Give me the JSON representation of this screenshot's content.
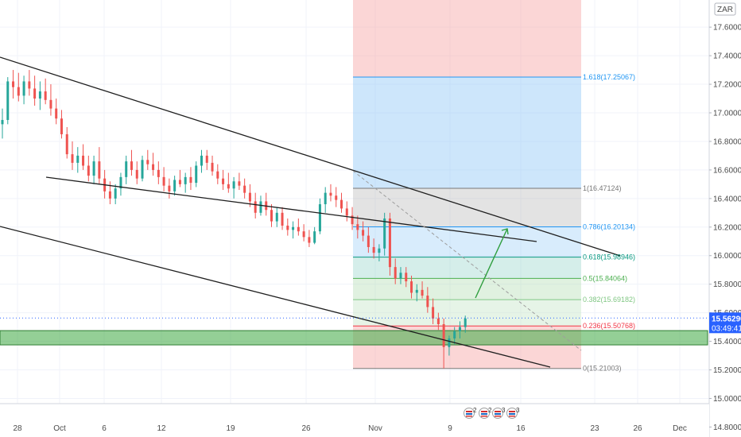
{
  "app": {
    "currency_badge": "ZAR",
    "price_tag": "15.56290",
    "countdown_tag": "03:49:41"
  },
  "colors": {
    "candle_up": "#26a69a",
    "candle_down": "#ef5350",
    "fib_line": "#2196f3",
    "support_zone": "#4caf50",
    "price_tag_bg": "#2962ff",
    "arrow": "#2e9e3e"
  },
  "event_icons": {
    "icon": "flag-icon",
    "counts": [
      "2",
      "2",
      "3",
      "3"
    ]
  },
  "chart_data": {
    "type": "candlestick",
    "title": "",
    "xlabel": "",
    "ylabel": "",
    "ylim": [
      14.73,
      17.79
    ],
    "x_tick_labels": [
      "28",
      "Oct",
      "6",
      "12",
      "19",
      "26",
      "Nov",
      "9",
      "16",
      "23",
      "26",
      "Dec"
    ],
    "y_tick_labels": [
      "17.60000",
      "17.40000",
      "17.20000",
      "17.00000",
      "16.80000",
      "16.60000",
      "16.40000",
      "16.20000",
      "16.00000",
      "15.80000",
      "15.60000",
      "15.40000",
      "15.20000",
      "15.00000",
      "14.80000"
    ],
    "y_ticks": [
      17.6,
      17.4,
      17.2,
      17.0,
      16.8,
      16.6,
      16.4,
      16.2,
      16.0,
      15.8,
      15.6,
      15.4,
      15.2,
      15.0,
      14.8
    ],
    "current_price": 15.5629,
    "fib_levels": [
      {
        "ratio": "1.618",
        "value": 17.25067,
        "label": "1.618(17.25067)",
        "color": "#2196f3"
      },
      {
        "ratio": "1",
        "value": 16.47124,
        "label": "1(16.47124)",
        "color": "#787878"
      },
      {
        "ratio": "0.786",
        "value": 16.20134,
        "label": "0.786(16.20134)",
        "color": "#2196f3"
      },
      {
        "ratio": "0.618",
        "value": 15.98946,
        "label": "0.618(15.98946)",
        "color": "#089981"
      },
      {
        "ratio": "0.5",
        "value": 15.84064,
        "label": "0.5(15.84064)",
        "color": "#4caf50"
      },
      {
        "ratio": "0.382",
        "value": 15.69182,
        "label": "0.382(15.69182)",
        "color": "#81c784"
      },
      {
        "ratio": "0.236",
        "value": 15.50768,
        "label": "0.236(15.50768)",
        "color": "#f23645"
      },
      {
        "ratio": "0",
        "value": 15.21003,
        "label": "0(15.21003)",
        "color": "#787878"
      }
    ],
    "support_zone": [
      15.375,
      15.475
    ],
    "ohlc": [
      [
        16.92,
        17.03,
        16.82,
        16.95
      ],
      [
        16.95,
        17.25,
        16.92,
        17.22
      ],
      [
        17.22,
        17.3,
        17.1,
        17.18
      ],
      [
        17.18,
        17.28,
        17.08,
        17.12
      ],
      [
        17.12,
        17.26,
        17.06,
        17.22
      ],
      [
        17.22,
        17.3,
        17.12,
        17.17
      ],
      [
        17.17,
        17.26,
        17.05,
        17.1
      ],
      [
        17.1,
        17.22,
        17.02,
        17.15
      ],
      [
        17.15,
        17.24,
        17.06,
        17.09
      ],
      [
        17.09,
        17.2,
        16.98,
        17.03
      ],
      [
        17.03,
        17.1,
        16.92,
        16.96
      ],
      [
        16.96,
        17.02,
        16.82,
        16.85
      ],
      [
        16.85,
        16.9,
        16.68,
        16.71
      ],
      [
        16.71,
        16.8,
        16.6,
        16.65
      ],
      [
        16.65,
        16.76,
        16.58,
        16.7
      ],
      [
        16.7,
        16.78,
        16.6,
        16.63
      ],
      [
        16.63,
        16.7,
        16.52,
        16.56
      ],
      [
        16.56,
        16.7,
        16.5,
        16.66
      ],
      [
        16.66,
        16.76,
        16.5,
        16.54
      ],
      [
        16.54,
        16.6,
        16.4,
        16.45
      ],
      [
        16.45,
        16.52,
        16.36,
        16.4
      ],
      [
        16.4,
        16.5,
        16.36,
        16.47
      ],
      [
        16.47,
        16.58,
        16.42,
        16.55
      ],
      [
        16.55,
        16.7,
        16.5,
        16.66
      ],
      [
        16.66,
        16.74,
        16.56,
        16.6
      ],
      [
        16.6,
        16.66,
        16.5,
        16.54
      ],
      [
        16.54,
        16.7,
        16.52,
        16.67
      ],
      [
        16.67,
        16.74,
        16.6,
        16.64
      ],
      [
        16.64,
        16.72,
        16.56,
        16.6
      ],
      [
        16.6,
        16.66,
        16.5,
        16.55
      ],
      [
        16.55,
        16.62,
        16.45,
        16.49
      ],
      [
        16.49,
        16.54,
        16.4,
        16.45
      ],
      [
        16.45,
        16.56,
        16.42,
        16.53
      ],
      [
        16.53,
        16.6,
        16.48,
        16.5
      ],
      [
        16.5,
        16.58,
        16.44,
        16.55
      ],
      [
        16.55,
        16.62,
        16.46,
        16.51
      ],
      [
        16.51,
        16.66,
        16.48,
        16.63
      ],
      [
        16.63,
        16.74,
        16.58,
        16.7
      ],
      [
        16.7,
        16.74,
        16.6,
        16.65
      ],
      [
        16.65,
        16.7,
        16.56,
        16.59
      ],
      [
        16.59,
        16.64,
        16.5,
        16.54
      ],
      [
        16.54,
        16.6,
        16.46,
        16.5
      ],
      [
        16.5,
        16.58,
        16.44,
        16.47
      ],
      [
        16.47,
        16.55,
        16.4,
        16.52
      ],
      [
        16.52,
        16.58,
        16.46,
        16.49
      ],
      [
        16.49,
        16.54,
        16.4,
        16.44
      ],
      [
        16.44,
        16.5,
        16.34,
        16.38
      ],
      [
        16.38,
        16.44,
        16.26,
        16.3
      ],
      [
        16.3,
        16.42,
        16.28,
        16.38
      ],
      [
        16.38,
        16.44,
        16.28,
        16.32
      ],
      [
        16.32,
        16.36,
        16.2,
        16.24
      ],
      [
        16.24,
        16.34,
        16.2,
        16.3
      ],
      [
        16.3,
        16.34,
        16.18,
        16.21
      ],
      [
        16.21,
        16.26,
        16.14,
        16.18
      ],
      [
        16.18,
        16.24,
        16.12,
        16.2
      ],
      [
        16.2,
        16.26,
        16.14,
        16.17
      ],
      [
        16.17,
        16.22,
        16.1,
        16.13
      ],
      [
        16.13,
        16.18,
        16.06,
        16.09
      ],
      [
        16.09,
        16.2,
        16.08,
        16.17
      ],
      [
        16.17,
        16.4,
        16.15,
        16.36
      ],
      [
        16.36,
        16.48,
        16.3,
        16.44
      ],
      [
        16.44,
        16.5,
        16.38,
        16.42
      ],
      [
        16.42,
        16.48,
        16.34,
        16.39
      ],
      [
        16.39,
        16.44,
        16.3,
        16.33
      ],
      [
        16.33,
        16.38,
        16.24,
        16.28
      ],
      [
        16.28,
        16.34,
        16.18,
        16.22
      ],
      [
        16.22,
        16.28,
        16.12,
        16.18
      ],
      [
        16.18,
        16.24,
        16.1,
        16.14
      ],
      [
        16.14,
        16.2,
        16.02,
        16.06
      ],
      [
        16.06,
        16.12,
        15.98,
        16.02
      ],
      [
        16.02,
        16.08,
        15.96,
        16.05
      ],
      [
        16.05,
        16.3,
        16.0,
        16.26
      ],
      [
        16.26,
        16.3,
        15.86,
        15.92
      ],
      [
        15.92,
        15.98,
        15.8,
        15.84
      ],
      [
        15.84,
        15.92,
        15.8,
        15.88
      ],
      [
        15.88,
        15.92,
        15.78,
        15.82
      ],
      [
        15.82,
        15.86,
        15.7,
        15.74
      ],
      [
        15.74,
        15.8,
        15.68,
        15.76
      ],
      [
        15.76,
        15.82,
        15.7,
        15.72
      ],
      [
        15.72,
        15.78,
        15.6,
        15.64
      ],
      [
        15.64,
        15.7,
        15.52,
        15.56
      ],
      [
        15.56,
        15.6,
        15.48,
        15.52
      ],
      [
        15.52,
        15.56,
        15.21,
        15.36
      ],
      [
        15.36,
        15.44,
        15.3,
        15.42
      ],
      [
        15.42,
        15.5,
        15.38,
        15.47
      ],
      [
        15.47,
        15.54,
        15.42,
        15.5
      ],
      [
        15.5,
        15.58,
        15.46,
        15.56
      ]
    ]
  }
}
